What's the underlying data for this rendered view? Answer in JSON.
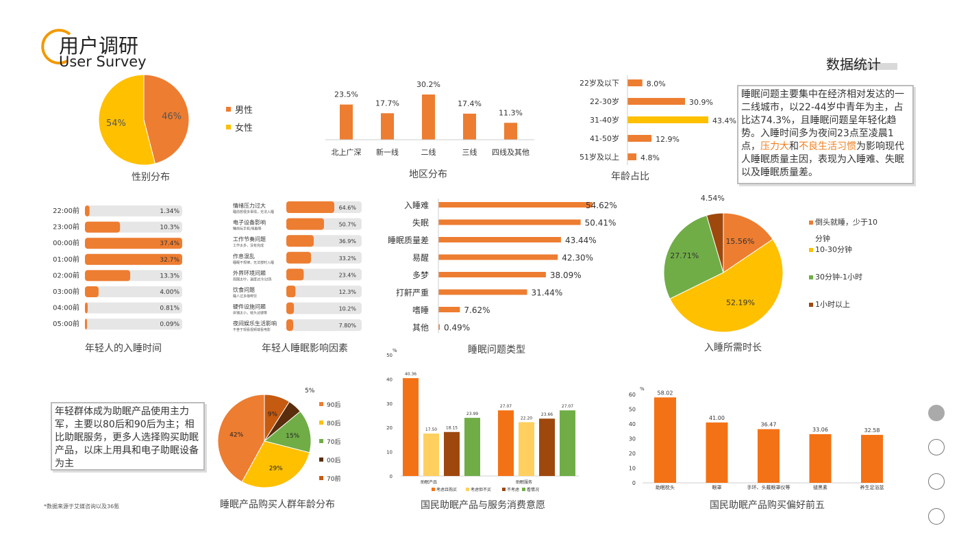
{
  "header": {
    "title_cn": "用户调研",
    "title_en": "User Survey",
    "section": "数据统计"
  },
  "source_note": "*数据来源于艾媒咨询以及36氪",
  "note1": {
    "p1": "睡眠问题主要集中在经济相对发达的一二线城市，以22-44岁中青年为主，占比达74.3%，且睡眠问题呈年轻化趋势。入睡时间多为夜间23点至凌晨1点，",
    "hl1": "压力大",
    "and": "和",
    "hl2": "不良生活习惯",
    "p2": "为影响现代人睡眠质量主因，表现为入睡难、失眠以及睡眠质量差。"
  },
  "note2": "年轻群体成为助眠产品使用主力军，主要以80后和90后为主；相比助眠服务，更多人选择购买助眠产品，以床上用具和电子助眠设备为主",
  "pager": [
    {
      "label": "page-1"
    },
    {
      "label": "page-2"
    },
    {
      "label": "page-3"
    },
    {
      "label": "page-4"
    }
  ],
  "chart_data": [
    {
      "id": "gender",
      "type": "pie",
      "title": "性别分布",
      "labels": [
        "男性",
        "女性"
      ],
      "values": [
        46,
        54
      ],
      "display": [
        "46%",
        "54%"
      ],
      "colors": [
        "#ed7d31",
        "#ffc000"
      ]
    },
    {
      "id": "region",
      "type": "bar",
      "title": "地区分布",
      "categories": [
        "北上广深",
        "新一线",
        "二线",
        "三线",
        "四线及其他"
      ],
      "values": [
        23.5,
        17.7,
        30.2,
        17.4,
        11.3
      ],
      "display": [
        "23.5%",
        "17.7%",
        "30.2%",
        "17.4%",
        "11.3%"
      ],
      "color": "#ed7d31"
    },
    {
      "id": "age",
      "type": "bar",
      "orientation": "horizontal",
      "title": "年龄占比",
      "categories": [
        "22岁及以下",
        "22-30岁",
        "31-40岁",
        "41-50岁",
        "51岁及以上"
      ],
      "values": [
        8.0,
        30.9,
        43.4,
        12.9,
        4.8
      ],
      "display": [
        "8.0%",
        "30.9%",
        "43.4%",
        "12.9%",
        "4.8%"
      ],
      "colors": [
        "#ed7d31",
        "#ed7d31",
        "#ffc000",
        "#ed7d31",
        "#ed7d31"
      ]
    },
    {
      "id": "bedtime",
      "type": "bar",
      "orientation": "horizontal",
      "title": "年轻人的入睡时间",
      "categories": [
        "22:00前",
        "23:00前",
        "00:00前",
        "01:00前",
        "02:00前",
        "03:00前",
        "04:00前",
        "05:00前"
      ],
      "values": [
        1.34,
        10.3,
        37.4,
        32.7,
        13.3,
        4.0,
        0.81,
        0.09
      ],
      "display": [
        "1.34%",
        "10.3%",
        "37.4%",
        "32.7%",
        "13.3%",
        "4.00%",
        "0.81%",
        "0.09%"
      ],
      "xlim": [
        0,
        100
      ]
    },
    {
      "id": "factors",
      "type": "bar",
      "orientation": "horizontal",
      "title": "年轻人睡眠影响因素",
      "categories": [
        "情绪压力过大",
        "电子设备影响",
        "工作节奏问题",
        "作息混乱",
        "外界环境问题",
        "饮食问题",
        "硬件设施问题",
        "夜间娱乐生活影响"
      ],
      "subtitles": [
        "睡前想很多事情，无法入睡",
        "睡前玩手机/电脑等",
        "工作太多，没有完成",
        "睡眠不规律，无法按时入睡",
        "周围太吵，温度过冷/过热",
        "睡人过多咖啡饮",
        "床铺太小，枕头过硬等",
        "不舍于观看视频或看电影"
      ],
      "values": [
        64.6,
        50.7,
        36.9,
        33.2,
        23.4,
        12.3,
        10.2,
        7.8
      ],
      "display": [
        "64.6%",
        "50.7%",
        "36.9%",
        "33.2%",
        "23.4%",
        "12.3%",
        "10.2%",
        "7.80%"
      ],
      "xlim": [
        0,
        100
      ]
    },
    {
      "id": "problems",
      "type": "bar",
      "orientation": "horizontal",
      "title": "睡眠问题类型",
      "categories": [
        "入睡难",
        "失眠",
        "睡眠质量差",
        "易醒",
        "多梦",
        "打鼾严重",
        "嗜睡",
        "其他"
      ],
      "values": [
        54.62,
        50.41,
        43.44,
        42.3,
        38.09,
        31.44,
        7.62,
        0.49
      ],
      "display": [
        "54.62%",
        "50.41%",
        "43.44%",
        "42.30%",
        "38.09%",
        "31.44%",
        "7.62%",
        "0.49%"
      ],
      "color": "#ed7d31"
    },
    {
      "id": "duration",
      "type": "pie",
      "title": "入睡所需时长",
      "labels": [
        "倒头就睡，少于10分钟",
        "10-30分钟",
        "30分钟-1小时",
        "1小时以上"
      ],
      "values": [
        15.56,
        52.19,
        27.71,
        4.54
      ],
      "display": [
        "15.56%",
        "52.19%",
        "27.71%",
        "4.54%"
      ],
      "colors": [
        "#ed7d31",
        "#ffc000",
        "#70ad47",
        "#9e480e"
      ]
    },
    {
      "id": "buyers",
      "type": "pie",
      "title": "睡眠产品购买人群年龄分布",
      "labels": [
        "90后",
        "80后",
        "70后",
        "00后",
        "70前"
      ],
      "values": [
        42,
        29,
        15,
        5,
        9
      ],
      "display": [
        "42%",
        "29%",
        "15%",
        "5%",
        "9%"
      ],
      "colors": [
        "#ed7d31",
        "#ffc000",
        "#70ad47",
        "#5a2d0c",
        "#c55a11"
      ]
    },
    {
      "id": "willing",
      "type": "bar",
      "title": "国民助眠产品与服务消费意愿",
      "unit": "%",
      "categories": [
        "助眠产品",
        "助眠服务"
      ],
      "ylim": [
        0,
        50
      ],
      "yticks": [
        0,
        10,
        20,
        30,
        40,
        50
      ],
      "series": [
        {
          "name": "考虑且购买",
          "values": [
            40.36,
            27.07
          ],
          "color": "#f47216"
        },
        {
          "name": "考虑但不买",
          "values": [
            17.5,
            22.2
          ],
          "color": "#ffd060"
        },
        {
          "name": "不考虑",
          "values": [
            18.15,
            23.66
          ],
          "color": "#9e480e"
        },
        {
          "name": "看情况",
          "values": [
            23.99,
            27.07
          ],
          "color": "#70ad47"
        }
      ]
    },
    {
      "id": "top5",
      "type": "bar",
      "title": "国民助眠产品购买偏好前五",
      "unit": "%",
      "categories": [
        "助眠枕头",
        "眼罩",
        "手环、头戴眼罩仪等",
        "褪黑素",
        "养生足浴盆"
      ],
      "values": [
        58.02,
        41.0,
        36.47,
        33.06,
        32.58
      ],
      "display": [
        "58.02",
        "41.00",
        "36.47",
        "33.06",
        "32.58"
      ],
      "ylim": [
        0,
        60
      ],
      "yticks": [
        0,
        10,
        20,
        30,
        40,
        50,
        60
      ],
      "color": "#f47216"
    }
  ]
}
